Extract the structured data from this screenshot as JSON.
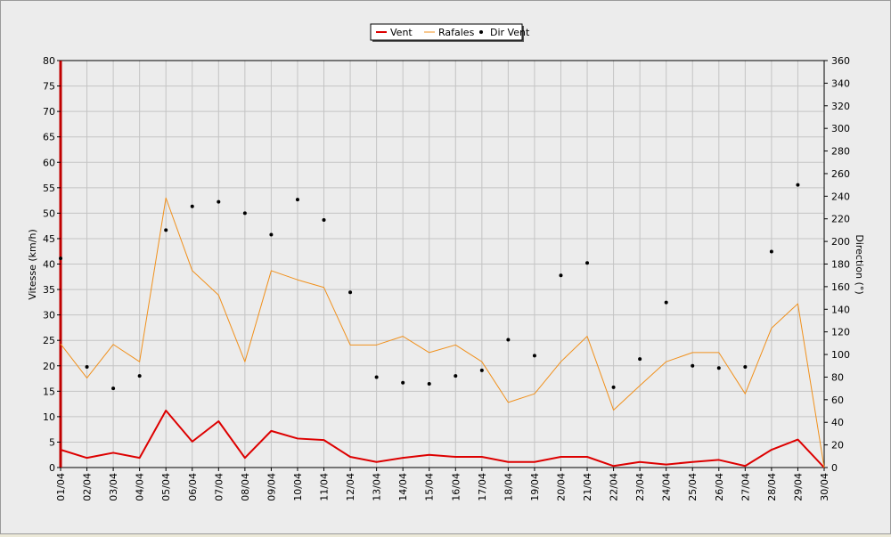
{
  "chart_data": {
    "type": "line",
    "x": [
      "01/04",
      "02/04",
      "03/04",
      "04/04",
      "05/04",
      "06/04",
      "07/04",
      "08/04",
      "09/04",
      "10/04",
      "11/04",
      "12/04",
      "13/04",
      "14/04",
      "15/04",
      "16/04",
      "17/04",
      "18/04",
      "19/04",
      "20/04",
      "21/04",
      "22/04",
      "23/04",
      "24/04",
      "25/04",
      "26/04",
      "27/04",
      "28/04",
      "29/04",
      "30/04"
    ],
    "ylabel": "Vitesse (km/h)",
    "ylabel_right": "Direction (°)",
    "ylim": [
      0,
      80
    ],
    "ylim_right": [
      0,
      360
    ],
    "yticks": [
      0,
      5,
      10,
      15,
      20,
      25,
      30,
      35,
      40,
      45,
      50,
      55,
      60,
      65,
      70,
      75,
      80
    ],
    "yticks_right": [
      0,
      20,
      40,
      60,
      80,
      100,
      120,
      140,
      160,
      180,
      200,
      220,
      240,
      260,
      280,
      300,
      320,
      340,
      360
    ],
    "grid": true,
    "legend_position": "top-center",
    "series": [
      {
        "name": "Vent",
        "kind": "line",
        "axis": "left",
        "color": "#dd0000",
        "values": [
          3.5,
          1.9,
          2.9,
          1.9,
          11.2,
          5.1,
          9.1,
          1.9,
          7.2,
          5.7,
          5.4,
          2.1,
          1.1,
          1.9,
          2.5,
          2.1,
          2.1,
          1.1,
          1.1,
          2.1,
          2.1,
          0.3,
          1.1,
          0.6,
          1.1,
          1.5,
          0.3,
          3.5,
          5.5,
          0
        ]
      },
      {
        "name": "Rafales",
        "kind": "line",
        "axis": "left",
        "color": "#f0901c",
        "values": [
          24.3,
          17.6,
          24.2,
          20.8,
          53,
          38.7,
          33.9,
          20.8,
          38.7,
          36.9,
          35.4,
          24.1,
          24.1,
          25.8,
          22.6,
          24.1,
          20.8,
          12.8,
          14.5,
          20.8,
          25.8,
          11.3,
          16.1,
          20.8,
          22.6,
          22.6,
          14.5,
          27.4,
          32.2,
          0
        ]
      },
      {
        "name": "Dir Vent",
        "kind": "scatter",
        "axis": "right",
        "color": "#000000",
        "values": [
          185,
          89,
          70,
          81,
          210,
          231,
          235,
          225,
          206,
          237,
          219,
          155,
          80,
          75,
          74,
          81,
          86,
          113,
          99,
          170,
          181,
          71,
          96,
          146,
          90,
          88,
          89,
          191,
          250,
          null
        ]
      }
    ]
  }
}
